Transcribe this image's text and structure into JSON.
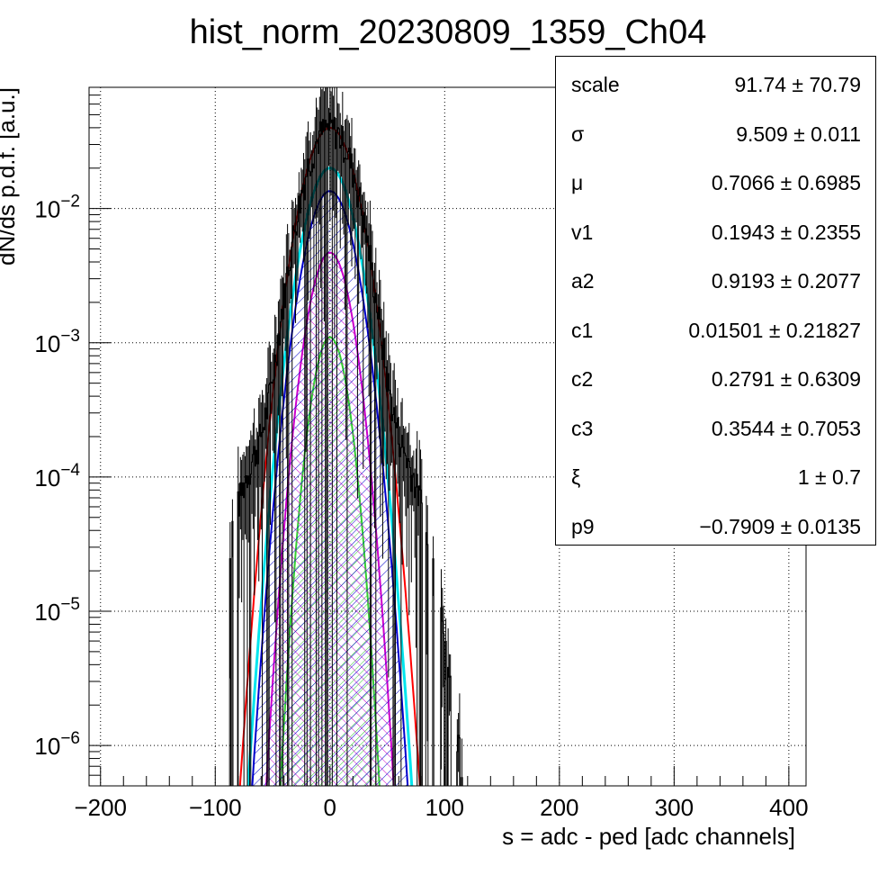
{
  "chart_data": {
    "type": "histogram",
    "title": "hist_norm_20230809_1359_Ch04",
    "xlabel": "s = adc - ped [adc channels]",
    "ylabel": "dN/ds p.d.f. [a.u.]",
    "xlim": [
      -210,
      415
    ],
    "ylim": [
      5e-07,
      0.08
    ],
    "yscale": "log",
    "grid": true,
    "x_ticks": [
      {
        "value": -200,
        "label": "−200"
      },
      {
        "value": -100,
        "label": "−100"
      },
      {
        "value": 0,
        "label": "0"
      },
      {
        "value": 100,
        "label": "100"
      },
      {
        "value": 200,
        "label": "200"
      },
      {
        "value": 300,
        "label": "300"
      },
      {
        "value": 400,
        "label": "400"
      }
    ],
    "y_ticks": [
      {
        "value": 0.01,
        "base": "10",
        "exp": "−2"
      },
      {
        "value": 0.001,
        "base": "10",
        "exp": "−3"
      },
      {
        "value": 0.0001,
        "base": "10",
        "exp": "−4"
      },
      {
        "value": 1e-05,
        "base": "10",
        "exp": "−5"
      },
      {
        "value": 1e-06,
        "base": "10",
        "exp": "−6"
      }
    ],
    "fit_curves": [
      {
        "color": "#ff0000",
        "peak": 0.04,
        "sigma": 16.5,
        "fill": false
      },
      {
        "color": "#00e5ee",
        "peak": 0.02,
        "sigma": 15.5,
        "fill": false
      },
      {
        "color": "#0000cc",
        "peak": 0.0135,
        "sigma": 15.0,
        "fill": true
      },
      {
        "color": "#cc00cc",
        "peak": 0.0047,
        "sigma": 13.0,
        "fill": true
      },
      {
        "color": "#33cc33",
        "peak": 0.0011,
        "sigma": 11.0,
        "fill": true
      }
    ],
    "histogram_shape": {
      "core_peak": 0.04,
      "core_sigma": 16.5,
      "shoulder_center": 55,
      "shoulder_peak": 0.00016,
      "shoulder_sigma": 18,
      "range": [
        -90,
        160
      ]
    }
  },
  "stats": [
    {
      "name": "scale",
      "value": "91.74 ± 70.79"
    },
    {
      "name": "σ",
      "value": "9.509 ± 0.011"
    },
    {
      "name": "μ",
      "value": "0.7066 ± 0.6985"
    },
    {
      "name": "v1",
      "value": "0.1943 ± 0.2355"
    },
    {
      "name": "a2",
      "value": "0.9193 ± 0.2077"
    },
    {
      "name": "c1",
      "value": "0.01501 ± 0.21827"
    },
    {
      "name": "c2",
      "value": "0.2791 ± 0.6309"
    },
    {
      "name": "c3",
      "value": "0.3544 ± 0.7053"
    },
    {
      "name": "ξ",
      "value": "1 ± 0.7"
    },
    {
      "name": "p9",
      "value": "−0.7909 ± 0.0135"
    }
  ]
}
